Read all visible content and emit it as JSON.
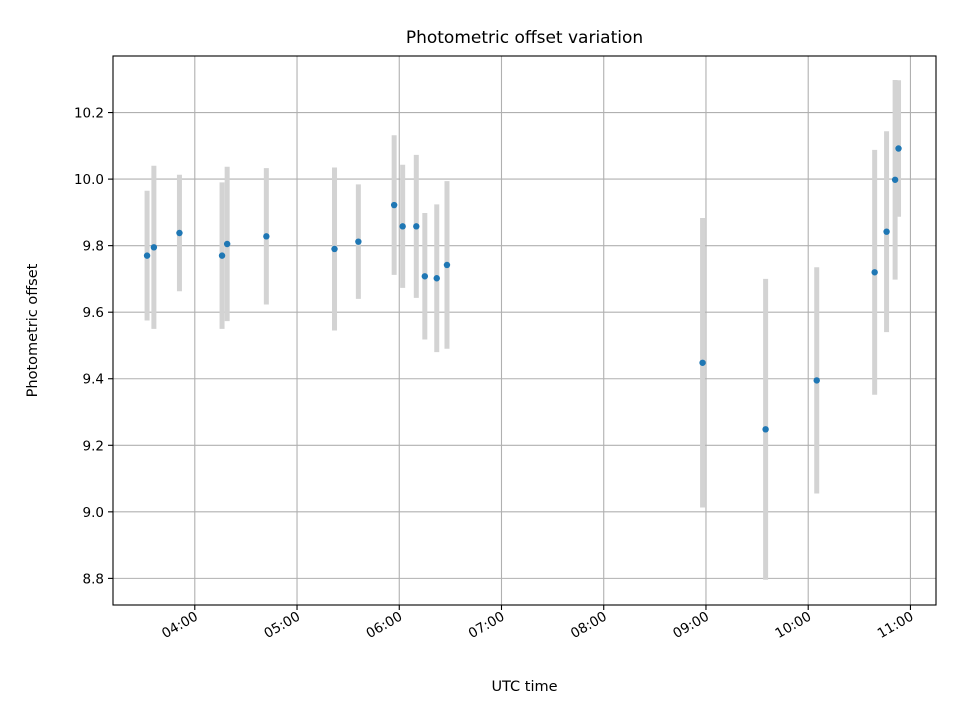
{
  "chart_data": {
    "type": "scatter",
    "title": "Photometric offset variation",
    "xlabel": "UTC time",
    "ylabel": "Photometric offset",
    "x_unit": "UTC time (HH:MM)",
    "xlim": [
      "03:12",
      "11:15"
    ],
    "ylim": [
      8.72,
      10.37
    ],
    "x_ticks": [
      "04:00",
      "05:00",
      "06:00",
      "07:00",
      "08:00",
      "09:00",
      "10:00",
      "11:00"
    ],
    "y_ticks": [
      8.8,
      9.0,
      9.2,
      9.4,
      9.6,
      9.8,
      10.0,
      10.2
    ],
    "y_tick_labels": [
      "8.8",
      "9.0",
      "9.2",
      "9.4",
      "9.6",
      "9.8",
      "10.0",
      "10.2"
    ],
    "grid": true,
    "colors": {
      "marker": "#1f77b4",
      "errorbar": "#d3d3d3",
      "grid": "#b0b0b0"
    },
    "series": [
      {
        "points": [
          {
            "x": "03:32",
            "y": 9.77,
            "err": 0.195
          },
          {
            "x": "03:36",
            "y": 9.795,
            "err": 0.245
          },
          {
            "x": "03:51",
            "y": 9.838,
            "err": 0.175
          },
          {
            "x": "04:16",
            "y": 9.77,
            "err": 0.22
          },
          {
            "x": "04:19",
            "y": 9.805,
            "err": 0.232
          },
          {
            "x": "04:42",
            "y": 9.828,
            "err": 0.205
          },
          {
            "x": "05:22",
            "y": 9.79,
            "err": 0.245
          },
          {
            "x": "05:36",
            "y": 9.812,
            "err": 0.172
          },
          {
            "x": "05:57",
            "y": 9.922,
            "err": 0.21
          },
          {
            "x": "06:02",
            "y": 9.858,
            "err": 0.185
          },
          {
            "x": "06:10",
            "y": 9.858,
            "err": 0.215
          },
          {
            "x": "06:15",
            "y": 9.708,
            "err": 0.19
          },
          {
            "x": "06:22",
            "y": 9.702,
            "err": 0.222
          },
          {
            "x": "06:28",
            "y": 9.742,
            "err": 0.252
          },
          {
            "x": "08:58",
            "y": 9.448,
            "err": 0.435
          },
          {
            "x": "09:35",
            "y": 9.248,
            "err": 0.452
          },
          {
            "x": "10:05",
            "y": 9.395,
            "err": 0.34
          },
          {
            "x": "10:39",
            "y": 9.72,
            "err": 0.368
          },
          {
            "x": "10:46",
            "y": 9.842,
            "err": 0.302
          },
          {
            "x": "10:51",
            "y": 9.998,
            "err": 0.3
          },
          {
            "x": "10:53",
            "y": 10.092,
            "err": 0.205
          }
        ]
      }
    ]
  }
}
